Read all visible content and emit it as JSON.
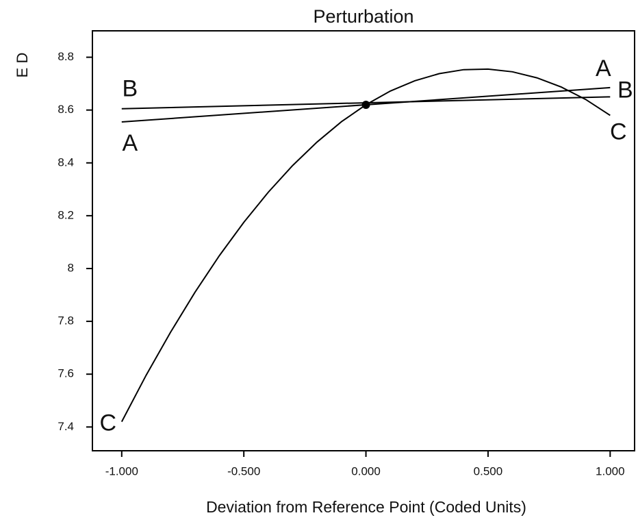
{
  "chart_data": {
    "type": "line",
    "title": "Perturbation",
    "xlabel": "Deviation from Reference Point (Coded Units)",
    "ylabel": "E D",
    "series": [
      {
        "name": "A",
        "color": "#000000",
        "x": [
          -1,
          1
        ],
        "values": [
          8.555,
          8.685
        ]
      },
      {
        "name": "B",
        "color": "#000000",
        "x": [
          -1,
          1
        ],
        "values": [
          8.605,
          8.65
        ]
      },
      {
        "name": "C",
        "color": "#000000",
        "x": [
          -1,
          -0.9,
          -0.8,
          -0.7,
          -0.6,
          -0.5,
          -0.4,
          -0.3,
          -0.2,
          -0.1,
          0,
          0.1,
          0.2,
          0.3,
          0.4,
          0.5,
          0.6,
          0.7,
          0.8,
          0.9,
          1
        ],
        "values": [
          7.42,
          7.596,
          7.759,
          7.91,
          8.049,
          8.175,
          8.289,
          8.39,
          8.479,
          8.556,
          8.62,
          8.672,
          8.711,
          8.738,
          8.753,
          8.755,
          8.745,
          8.722,
          8.687,
          8.64,
          8.58
        ]
      }
    ],
    "reference_point": [
      0,
      8.62
    ],
    "xlim": [
      -1.12,
      1.1
    ],
    "ylim": [
      7.31,
      8.9
    ],
    "xticks": [
      {
        "value": -1,
        "label": "-1.000"
      },
      {
        "value": -0.5,
        "label": "-0.500"
      },
      {
        "value": 0,
        "label": "0.000"
      },
      {
        "value": 0.5,
        "label": "0.500"
      },
      {
        "value": 1,
        "label": "1.000"
      }
    ],
    "yticks": [
      7.4,
      7.6,
      7.8,
      8,
      8.2,
      8.4,
      8.6,
      8.8
    ],
    "grid": false
  }
}
